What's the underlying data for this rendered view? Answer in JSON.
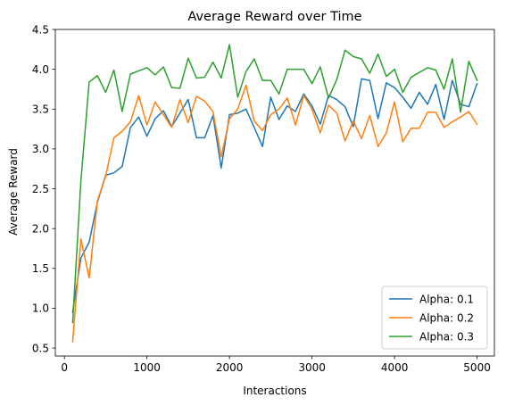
{
  "chart_data": {
    "type": "line",
    "title": "Average Reward over Time",
    "xlabel": "Interactions",
    "ylabel": "Average Reward",
    "xlim": [
      -110,
      5210
    ],
    "ylim": [
      0.4,
      4.5
    ],
    "xticks": [
      0,
      1000,
      2000,
      3000,
      4000,
      5000
    ],
    "yticks": [
      0.5,
      1.0,
      1.5,
      2.0,
      2.5,
      3.0,
      3.5,
      4.0,
      4.5
    ],
    "xtick_labels": [
      "0",
      "1000",
      "2000",
      "3000",
      "4000",
      "5000"
    ],
    "ytick_labels": [
      "0.5",
      "1.0",
      "1.5",
      "2.0",
      "2.5",
      "3.0",
      "3.5",
      "4.0",
      "4.5"
    ],
    "grid": false,
    "legend_position": "lower-right",
    "x": [
      100,
      200,
      300,
      400,
      500,
      600,
      700,
      800,
      900,
      1000,
      1100,
      1200,
      1300,
      1400,
      1500,
      1600,
      1700,
      1800,
      1900,
      2000,
      2100,
      2200,
      2300,
      2400,
      2500,
      2600,
      2700,
      2800,
      2900,
      3000,
      3100,
      3200,
      3300,
      3400,
      3500,
      3600,
      3700,
      3800,
      3900,
      4000,
      4100,
      4200,
      4300,
      4400,
      4500,
      4600,
      4700,
      4800,
      4900,
      5000
    ],
    "series": [
      {
        "name": "Alpha: 0.1",
        "color": "#1f77b4",
        "values": [
          0.95,
          1.63,
          1.83,
          2.33,
          2.67,
          2.7,
          2.78,
          3.27,
          3.4,
          3.16,
          3.38,
          3.48,
          3.28,
          3.45,
          3.62,
          3.14,
          3.14,
          3.42,
          2.76,
          3.43,
          3.45,
          3.5,
          3.27,
          3.03,
          3.65,
          3.37,
          3.54,
          3.47,
          3.69,
          3.54,
          3.31,
          3.67,
          3.62,
          3.53,
          3.28,
          3.88,
          3.86,
          3.38,
          3.83,
          3.77,
          3.65,
          3.51,
          3.71,
          3.56,
          3.81,
          3.37,
          3.86,
          3.56,
          3.53,
          3.82
        ]
      },
      {
        "name": "Alpha: 0.2",
        "color": "#ff7f0e",
        "values": [
          0.58,
          1.87,
          1.38,
          2.35,
          2.66,
          3.14,
          3.22,
          3.34,
          3.67,
          3.3,
          3.59,
          3.43,
          3.27,
          3.62,
          3.33,
          3.66,
          3.6,
          3.47,
          2.9,
          3.38,
          3.5,
          3.8,
          3.35,
          3.23,
          3.43,
          3.5,
          3.64,
          3.3,
          3.67,
          3.5,
          3.2,
          3.55,
          3.45,
          3.1,
          3.35,
          3.13,
          3.42,
          3.03,
          3.2,
          3.59,
          3.09,
          3.26,
          3.26,
          3.46,
          3.46,
          3.27,
          3.34,
          3.4,
          3.47,
          3.31
        ]
      },
      {
        "name": "Alpha: 0.3",
        "color": "#2ca02c",
        "values": [
          0.82,
          2.6,
          3.84,
          3.92,
          3.71,
          3.99,
          3.47,
          3.94,
          3.98,
          4.02,
          3.93,
          4.03,
          3.77,
          3.76,
          4.14,
          3.89,
          3.9,
          4.09,
          3.89,
          4.31,
          3.65,
          3.97,
          4.13,
          3.86,
          3.86,
          3.69,
          4.0,
          4.0,
          4.0,
          3.82,
          4.03,
          3.64,
          3.87,
          4.24,
          4.16,
          4.13,
          3.95,
          4.19,
          3.91,
          4.0,
          3.71,
          3.9,
          3.96,
          4.02,
          3.99,
          3.75,
          4.13,
          3.46,
          4.1,
          3.86
        ]
      }
    ]
  }
}
